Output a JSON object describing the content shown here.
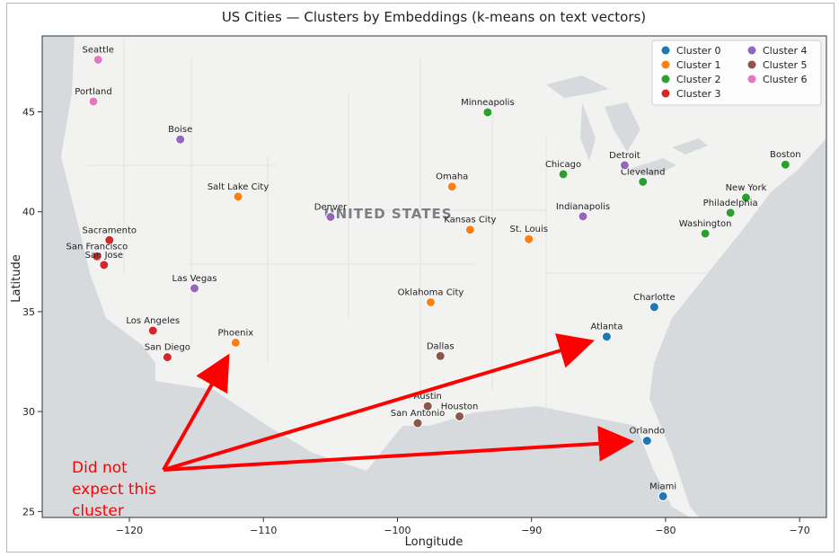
{
  "chart_data": {
    "type": "scatter",
    "title": "US Cities — Clusters by Embeddings (k-means on text vectors)",
    "xlabel": "Longitude",
    "ylabel": "Latitude",
    "xlim": [
      -126.5,
      -68
    ],
    "ylim": [
      24.7,
      48.8
    ],
    "xticks": [
      -120,
      -110,
      -100,
      -90,
      -80,
      -70
    ],
    "yticks": [
      25,
      30,
      35,
      40,
      45
    ],
    "grid": false,
    "legend_placement": "top-right",
    "basemap_label": "UNITED STATES",
    "series": [
      {
        "name": "Cluster 0",
        "color": "#1f77b4",
        "points": [
          {
            "label": "Charlotte",
            "x": -80.84,
            "y": 35.23
          },
          {
            "label": "Atlanta",
            "x": -84.39,
            "y": 33.75
          },
          {
            "label": "Orlando",
            "x": -81.38,
            "y": 28.54
          },
          {
            "label": "Miami",
            "x": -80.19,
            "y": 25.76
          }
        ]
      },
      {
        "name": "Cluster 1",
        "color": "#ff7f0e",
        "points": [
          {
            "label": "Salt Lake City",
            "x": -111.89,
            "y": 40.76
          },
          {
            "label": "Omaha",
            "x": -95.93,
            "y": 41.26
          },
          {
            "label": "Kansas City",
            "x": -94.58,
            "y": 39.1
          },
          {
            "label": "St. Louis",
            "x": -90.2,
            "y": 38.63
          },
          {
            "label": "Oklahoma City",
            "x": -97.52,
            "y": 35.47
          },
          {
            "label": "Phoenix",
            "x": -112.07,
            "y": 33.45
          }
        ]
      },
      {
        "name": "Cluster 2",
        "color": "#2ca02c",
        "points": [
          {
            "label": "Minneapolis",
            "x": -93.27,
            "y": 44.98
          },
          {
            "label": "Chicago",
            "x": -87.63,
            "y": 41.88
          },
          {
            "label": "Cleveland",
            "x": -81.69,
            "y": 41.5
          },
          {
            "label": "Boston",
            "x": -71.06,
            "y": 42.36
          },
          {
            "label": "New York",
            "x": -74.0,
            "y": 40.71
          },
          {
            "label": "Philadelphia",
            "x": -75.16,
            "y": 39.95
          },
          {
            "label": "Washington",
            "x": -77.04,
            "y": 38.91
          }
        ]
      },
      {
        "name": "Cluster 3",
        "color": "#d62728",
        "points": [
          {
            "label": "Sacramento",
            "x": -121.49,
            "y": 38.58
          },
          {
            "label": "San Francisco",
            "x": -122.42,
            "y": 37.77
          },
          {
            "label": "San Jose",
            "x": -121.89,
            "y": 37.34
          },
          {
            "label": "Los Angeles",
            "x": -118.24,
            "y": 34.05
          },
          {
            "label": "San Diego",
            "x": -117.16,
            "y": 32.72
          }
        ]
      },
      {
        "name": "Cluster 4",
        "color": "#9467bd",
        "points": [
          {
            "label": "Boise",
            "x": -116.2,
            "y": 43.62
          },
          {
            "label": "Denver",
            "x": -104.99,
            "y": 39.74
          },
          {
            "label": "Las Vegas",
            "x": -115.14,
            "y": 36.17
          },
          {
            "label": "Detroit",
            "x": -83.05,
            "y": 42.33
          },
          {
            "label": "Indianapolis",
            "x": -86.16,
            "y": 39.77
          }
        ]
      },
      {
        "name": "Cluster 5",
        "color": "#8c564b",
        "points": [
          {
            "label": "Dallas",
            "x": -96.8,
            "y": 32.78
          },
          {
            "label": "Austin",
            "x": -97.74,
            "y": 30.27
          },
          {
            "label": "Houston",
            "x": -95.37,
            "y": 29.76
          },
          {
            "label": "San Antonio",
            "x": -98.49,
            "y": 29.42
          }
        ]
      },
      {
        "name": "Cluster 6",
        "color": "#e377c2",
        "points": [
          {
            "label": "Seattle",
            "x": -122.33,
            "y": 47.61
          },
          {
            "label": "Portland",
            "x": -122.68,
            "y": 45.52
          }
        ]
      }
    ],
    "annotation": {
      "text_lines": [
        "Did not",
        "expect this",
        "cluster"
      ],
      "color": "#ff0000",
      "arrow_targets": [
        "Phoenix",
        "Atlanta",
        "Orlando"
      ]
    }
  }
}
